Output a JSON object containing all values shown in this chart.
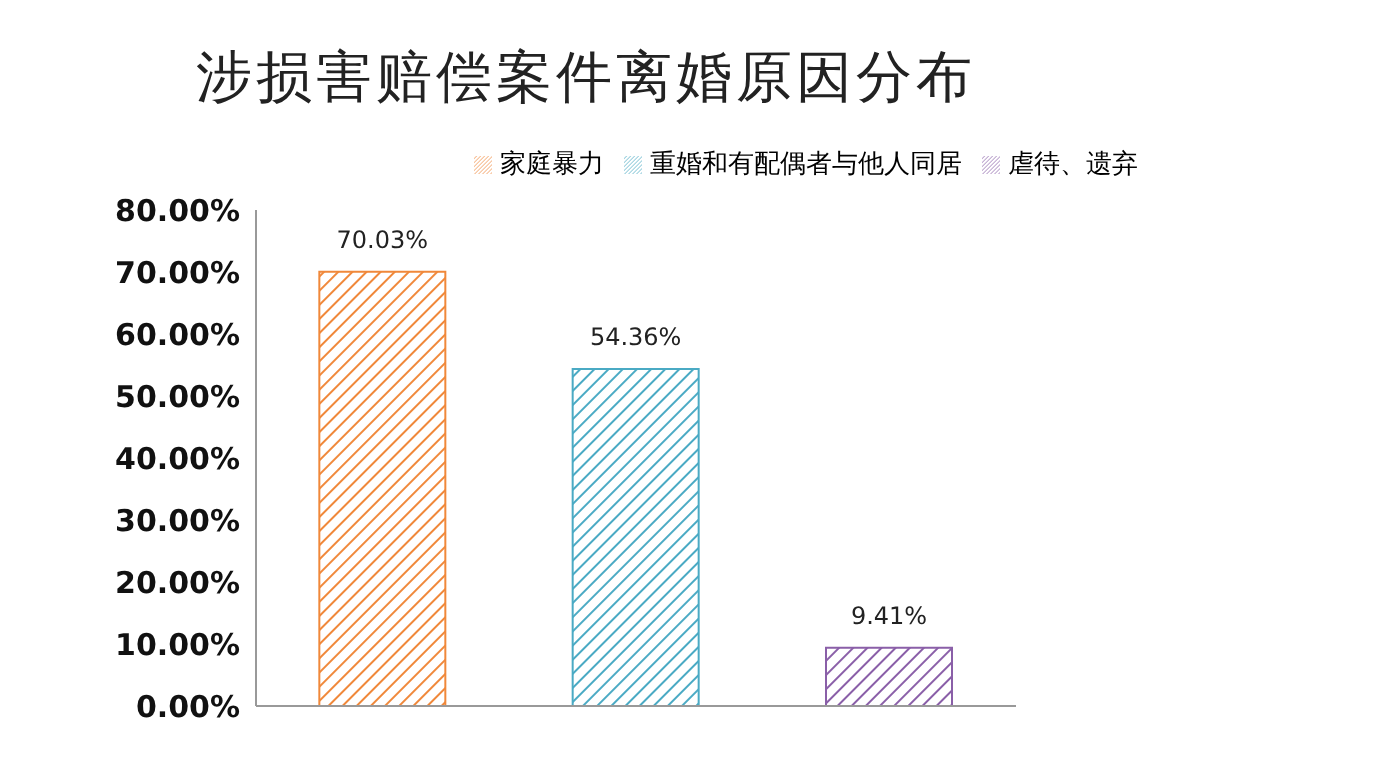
{
  "chart_data": {
    "type": "bar",
    "title": "涉损害赔偿案件离婚原因分布",
    "categories": [
      null,
      null,
      null
    ],
    "series": [
      {
        "name": "家庭暴力",
        "color": "#f0883a",
        "values": [
          70.03,
          null,
          null
        ],
        "value_labels": [
          "70.03%",
          null,
          null
        ]
      },
      {
        "name": "重婚和有配偶者与他人同居",
        "color": "#4aaac4",
        "values": [
          null,
          54.36,
          null
        ],
        "value_labels": [
          null,
          "54.36%",
          null
        ]
      },
      {
        "name": "虐待、遗弃",
        "color": "#8a5fa8",
        "values": [
          null,
          null,
          9.41
        ],
        "value_labels": [
          null,
          null,
          "9.41%"
        ]
      }
    ],
    "ylim": [
      0,
      80
    ],
    "yticks": [
      {
        "value": 0,
        "label": "0.00%"
      },
      {
        "value": 10,
        "label": "10.00%"
      },
      {
        "value": 20,
        "label": "20.00%"
      },
      {
        "value": 30,
        "label": "30.00%"
      },
      {
        "value": 40,
        "label": "40.00%"
      },
      {
        "value": 50,
        "label": "50.00%"
      },
      {
        "value": 60,
        "label": "60.00%"
      },
      {
        "value": 70,
        "label": "70.00%"
      },
      {
        "value": 80,
        "label": "80.00%"
      }
    ],
    "grid": false,
    "legend": "top"
  }
}
